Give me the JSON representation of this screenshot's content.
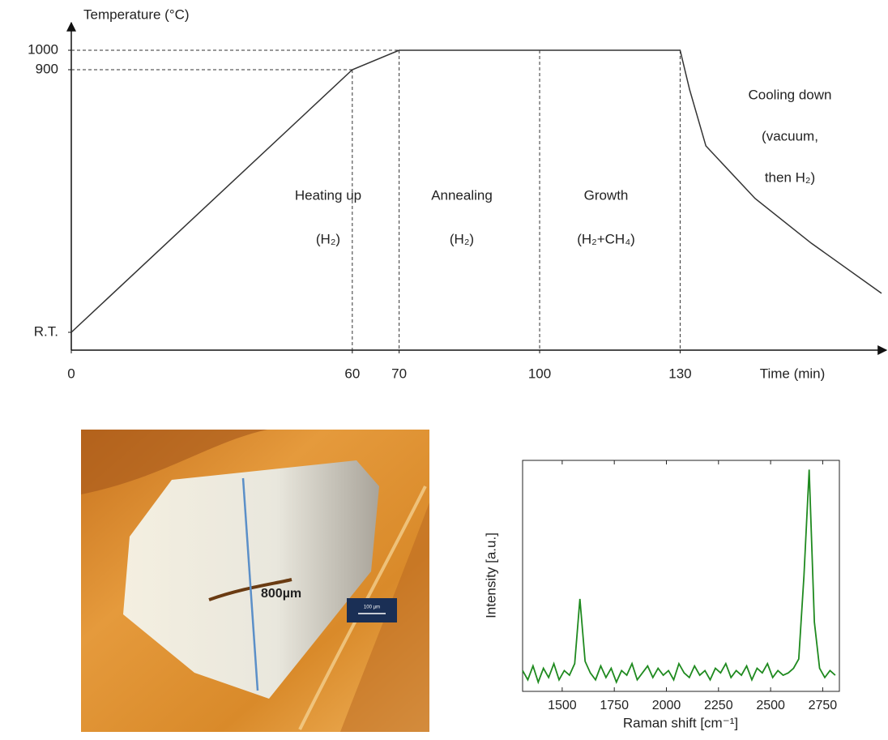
{
  "chart_data": [
    {
      "type": "line",
      "y_label": "Temperature (°C)",
      "x_label": "Time (min)",
      "x": [
        0,
        60,
        70,
        130,
        132,
        135.5,
        146,
        158,
        173
      ],
      "values": [
        25,
        900,
        1000,
        1000,
        835,
        646,
        471,
        322,
        155
      ],
      "color": "#333333",
      "xlim": [
        0,
        173
      ],
      "ylim": [
        25,
        1000
      ],
      "xticks": [
        0,
        60,
        70,
        100,
        130
      ],
      "yticks": [
        {
          "value": 25,
          "label": "R.T."
        },
        900,
        1000
      ],
      "annotations": [
        [
          "Heating up",
          "(H₂)"
        ],
        [
          "Annealing",
          "(H₂)"
        ],
        [
          "Growth",
          "(H₂+CH₄)"
        ],
        [
          "Cooling down",
          "(vacuum,",
          "then H₂)"
        ]
      ]
    },
    {
      "type": "line",
      "y_label": "Intensity [a.u.]",
      "x_label": "Raman shift [cm⁻¹]",
      "color": "#1f8a1f",
      "x": [
        1310,
        1335,
        1360,
        1385,
        1410,
        1435,
        1460,
        1485,
        1510,
        1535,
        1560,
        1585,
        1610,
        1635,
        1660,
        1685,
        1710,
        1735,
        1760,
        1785,
        1810,
        1835,
        1860,
        1885,
        1910,
        1935,
        1960,
        1985,
        2010,
        2035,
        2060,
        2085,
        2110,
        2135,
        2160,
        2185,
        2210,
        2235,
        2260,
        2285,
        2310,
        2335,
        2360,
        2385,
        2410,
        2435,
        2460,
        2485,
        2510,
        2535,
        2560,
        2585,
        2610,
        2635,
        2660,
        2685,
        2710,
        2735,
        2760,
        2785,
        2810
      ],
      "values": [
        9,
        5,
        11,
        4,
        10,
        6,
        12,
        5,
        9,
        7,
        12,
        40,
        13,
        8,
        5,
        11,
        6,
        10,
        4,
        9,
        7,
        12,
        5,
        8,
        11,
        6,
        10,
        7,
        9,
        5,
        12,
        8,
        6,
        11,
        7,
        9,
        5,
        10,
        8,
        12,
        6,
        9,
        7,
        11,
        5,
        10,
        8,
        12,
        6,
        9,
        7,
        8,
        10,
        14,
        50,
        96,
        30,
        10,
        6,
        9,
        7
      ],
      "xlim": [
        1310,
        2830
      ],
      "ylim": [
        0,
        100
      ],
      "xticks": [
        1500,
        1750,
        2000,
        2250,
        2500,
        2750
      ]
    }
  ],
  "micrograph": {
    "label": "800µm",
    "scale_bar": "100 µm"
  }
}
